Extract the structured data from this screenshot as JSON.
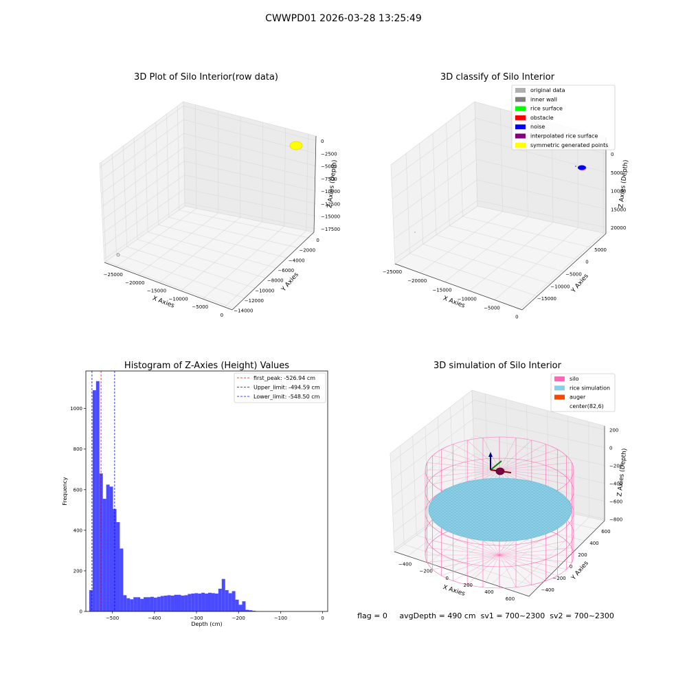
{
  "suptitle": "CWWPD01 2026-03-28 13:25:49",
  "status_text": "flag = 0     avgDepth = 490 cm  sv1 = 700~2300  sv2 = 700~2300",
  "chart_data": [
    {
      "type": "scatter",
      "projection": "3d",
      "title": "3D Plot of Silo Interior(row data)",
      "xlabel": "X Axies",
      "ylabel": "Y Axies",
      "zlabel": "Z Axies (Depth)",
      "x_ticks": [
        "−25000",
        "−20000",
        "−15000",
        "−10000",
        "−5000",
        "0"
      ],
      "y_ticks": [
        "−14000",
        "−12000",
        "−10000",
        "−8000",
        "−6000",
        "−4000",
        "−2000",
        "0"
      ],
      "z_ticks": [
        "−17500",
        "−15000",
        "−12500",
        "−10000",
        "−7500",
        "−5000",
        "−2500",
        "0"
      ],
      "clusters": [
        {
          "color": "#ffff00",
          "x": 0,
          "y": -100,
          "z": -300
        },
        {
          "color": "#888888",
          "x": -25000,
          "y": -14000,
          "z": -17500
        }
      ]
    },
    {
      "type": "scatter",
      "projection": "3d",
      "title": "3D classify of Silo Interior",
      "xlabel": "X Axies",
      "ylabel": "Y Axies",
      "zlabel": "Z Axies (Depth)",
      "x_ticks": [
        "−25000",
        "−20000",
        "−15000",
        "−10000",
        "−5000",
        "0"
      ],
      "y_ticks": [
        "−15000",
        "−10000",
        "−5000",
        "0",
        "5000"
      ],
      "z_ticks": [
        "20000",
        "15000",
        "10000",
        "5000",
        "0"
      ],
      "legend_position": "upper-right",
      "legend": [
        {
          "label": "original data",
          "color": "#b0b0b0"
        },
        {
          "label": "inner wall",
          "color": "#808080"
        },
        {
          "label": "rice surface",
          "color": "#00ff00"
        },
        {
          "label": "obstacle",
          "color": "#ff0000"
        },
        {
          "label": "noise",
          "color": "#0000ff"
        },
        {
          "label": "interpolated rice surface",
          "color": "#800080"
        },
        {
          "label": "symmetric generated points",
          "color": "#ffff00"
        }
      ]
    },
    {
      "type": "bar",
      "title": "Histogram of Z-Axies (Height) Values",
      "xlabel": "Depth (cm)",
      "ylabel": "Frequency",
      "bar_color": "#4a4aff",
      "x_range": [
        -563,
        12
      ],
      "ylim": [
        0,
        1185
      ],
      "x_ticks": [
        -500,
        -400,
        -300,
        -200,
        -100,
        0
      ],
      "y_ticks": [
        0,
        200,
        400,
        600,
        800,
        1000
      ],
      "bin_start": -555,
      "bin_width": 8.08,
      "values": [
        105,
        1090,
        1135,
        680,
        555,
        625,
        615,
        505,
        440,
        310,
        80,
        65,
        60,
        70,
        70,
        62,
        70,
        70,
        72,
        68,
        72,
        76,
        78,
        80,
        78,
        82,
        82,
        78,
        80,
        86,
        88,
        90,
        88,
        92,
        88,
        92,
        90,
        88,
        112,
        160,
        105,
        90,
        100,
        58,
        33,
        50,
        8,
        6,
        3
      ],
      "vlines": [
        {
          "label": "first_peak: -526.94 cm",
          "x": -526.94,
          "color": "#ff0000"
        },
        {
          "label": "Upper_limit: -494.59 cm",
          "x": -494.59,
          "color": "#0000ff"
        },
        {
          "label": "Lower_limit: -548.50 cm",
          "x": -548.5,
          "color": "#0000ff"
        }
      ],
      "legend_position": "upper-right"
    },
    {
      "type": "surface",
      "projection": "3d",
      "title": "3D simulation of Silo Interior",
      "xlabel": "X Axies",
      "ylabel": "Y Axies",
      "zlabel": "Z Axies (Depth)",
      "x_ticks": [
        "−400",
        "−200",
        "0",
        "200",
        "400",
        "600"
      ],
      "y_ticks": [
        "−400",
        "−200",
        "0",
        "200",
        "400",
        "600"
      ],
      "z_ticks": [
        "−800",
        "−600",
        "−400",
        "−200",
        "0",
        "200"
      ],
      "legend_position": "upper-right",
      "legend": [
        {
          "label": "silo",
          "color": "#ff69b4"
        },
        {
          "label": "rice simulation",
          "color": "#87ceeb"
        },
        {
          "label": "auger",
          "color": "#ff4500"
        },
        {
          "label": "center(82,6)",
          "color": ""
        }
      ]
    }
  ]
}
